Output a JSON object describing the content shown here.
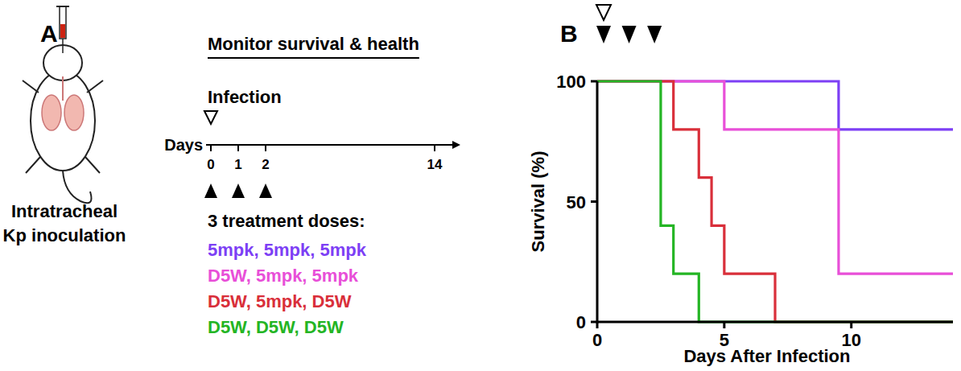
{
  "panel_a": {
    "label": "A",
    "procedure": [
      "Intratracheal",
      "Kp inoculation"
    ],
    "header": "Monitor survival & health",
    "event": "Infection",
    "axis_label": "Days",
    "days": [
      0,
      1,
      2,
      14
    ],
    "infection_day": 0,
    "dose_days": [
      0,
      1,
      2
    ],
    "doses_title": "3 treatment doses:"
  },
  "chart_data": {
    "type": "step",
    "annotations": [
      "B"
    ],
    "x_label": "Days After Infection",
    "y_label": "Survival (%)",
    "xlim": [
      0,
      14
    ],
    "ylim": [
      0,
      100
    ],
    "xticks": [
      0,
      5,
      10
    ],
    "yticks": [
      0,
      50,
      100
    ],
    "infection_days": [
      0
    ],
    "dose_days": [
      0,
      1,
      2
    ],
    "series": [
      {
        "name": "5mpk, 5mpk, 5mpk",
        "color": "#7d3ff5",
        "x": [
          0,
          9.5,
          14
        ],
        "values": [
          100,
          80,
          80
        ]
      },
      {
        "name": "D5W, 5mpk, 5mpk",
        "color": "#e84fd8",
        "x": [
          0,
          5,
          9.5,
          14
        ],
        "values": [
          100,
          80,
          20,
          20
        ]
      },
      {
        "name": "D5W, 5mpk, D5W",
        "color": "#d92f3a",
        "x": [
          0,
          3,
          4,
          4.5,
          5,
          7,
          14
        ],
        "values": [
          100,
          80,
          60,
          40,
          20,
          0,
          0
        ]
      },
      {
        "name": "D5W, D5W, D5W",
        "color": "#24b524",
        "x": [
          0,
          2.5,
          3,
          4,
          14
        ],
        "values": [
          100,
          40,
          20,
          0,
          0
        ]
      }
    ]
  }
}
